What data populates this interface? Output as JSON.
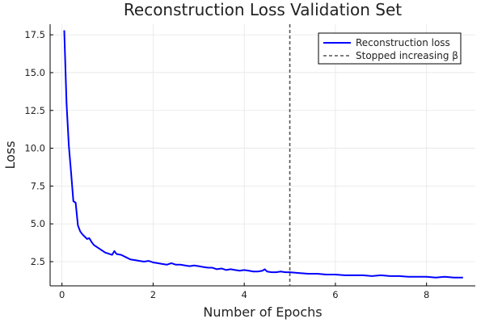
{
  "chart_data": {
    "type": "line",
    "title": "Reconstruction Loss Validation Set",
    "xlabel": "Number of Epochs",
    "ylabel": "Loss",
    "xlim": [
      -0.26,
      9.07
    ],
    "ylim": [
      0.9,
      18.2
    ],
    "xticks": [
      0,
      2,
      4,
      6,
      8
    ],
    "xtick_labels": [
      "0",
      "2",
      "4",
      "6",
      "8"
    ],
    "yticks": [
      2.5,
      5.0,
      7.5,
      10.0,
      12.5,
      15.0,
      17.5
    ],
    "ytick_labels": [
      "2.5",
      "5.0",
      "7.5",
      "10.0",
      "12.5",
      "15.0",
      "17.5"
    ],
    "grid": true,
    "legend_position": "top-right",
    "series": [
      {
        "name": "Reconstruction loss",
        "color": "#0000ff",
        "style": "solid",
        "x": [
          0.05,
          0.1,
          0.15,
          0.2,
          0.25,
          0.3,
          0.35,
          0.4,
          0.45,
          0.5,
          0.55,
          0.6,
          0.65,
          0.7,
          0.75,
          0.8,
          0.85,
          0.9,
          0.95,
          1.0,
          1.05,
          1.1,
          1.15,
          1.2,
          1.3,
          1.4,
          1.5,
          1.6,
          1.7,
          1.8,
          1.9,
          2.0,
          2.1,
          2.2,
          2.3,
          2.4,
          2.5,
          2.6,
          2.7,
          2.8,
          2.9,
          3.0,
          3.1,
          3.2,
          3.3,
          3.4,
          3.5,
          3.6,
          3.7,
          3.8,
          3.9,
          4.0,
          4.1,
          4.2,
          4.3,
          4.4,
          4.45,
          4.5,
          4.6,
          4.7,
          4.8,
          4.9,
          5.0,
          5.2,
          5.4,
          5.6,
          5.8,
          6.0,
          6.2,
          6.4,
          6.6,
          6.8,
          7.0,
          7.2,
          7.4,
          7.6,
          7.8,
          8.0,
          8.2,
          8.4,
          8.6,
          8.8
        ],
        "y": [
          17.8,
          13.0,
          10.2,
          8.4,
          6.5,
          6.4,
          4.9,
          4.5,
          4.3,
          4.15,
          4.0,
          4.05,
          3.8,
          3.6,
          3.5,
          3.4,
          3.3,
          3.2,
          3.1,
          3.05,
          3.0,
          2.95,
          3.2,
          3.0,
          2.95,
          2.8,
          2.65,
          2.6,
          2.55,
          2.5,
          2.55,
          2.45,
          2.4,
          2.35,
          2.3,
          2.4,
          2.3,
          2.3,
          2.25,
          2.2,
          2.25,
          2.2,
          2.15,
          2.1,
          2.1,
          2.0,
          2.05,
          1.95,
          2.0,
          1.95,
          1.9,
          1.95,
          1.9,
          1.85,
          1.85,
          1.9,
          2.0,
          1.85,
          1.8,
          1.8,
          1.85,
          1.8,
          1.8,
          1.75,
          1.7,
          1.7,
          1.65,
          1.65,
          1.6,
          1.6,
          1.6,
          1.55,
          1.6,
          1.55,
          1.55,
          1.5,
          1.5,
          1.5,
          1.45,
          1.5,
          1.45,
          1.45
        ]
      },
      {
        "name": "Stopped increasing β",
        "color": "#555555",
        "style": "dashed",
        "vline_x": 5.0
      }
    ]
  }
}
